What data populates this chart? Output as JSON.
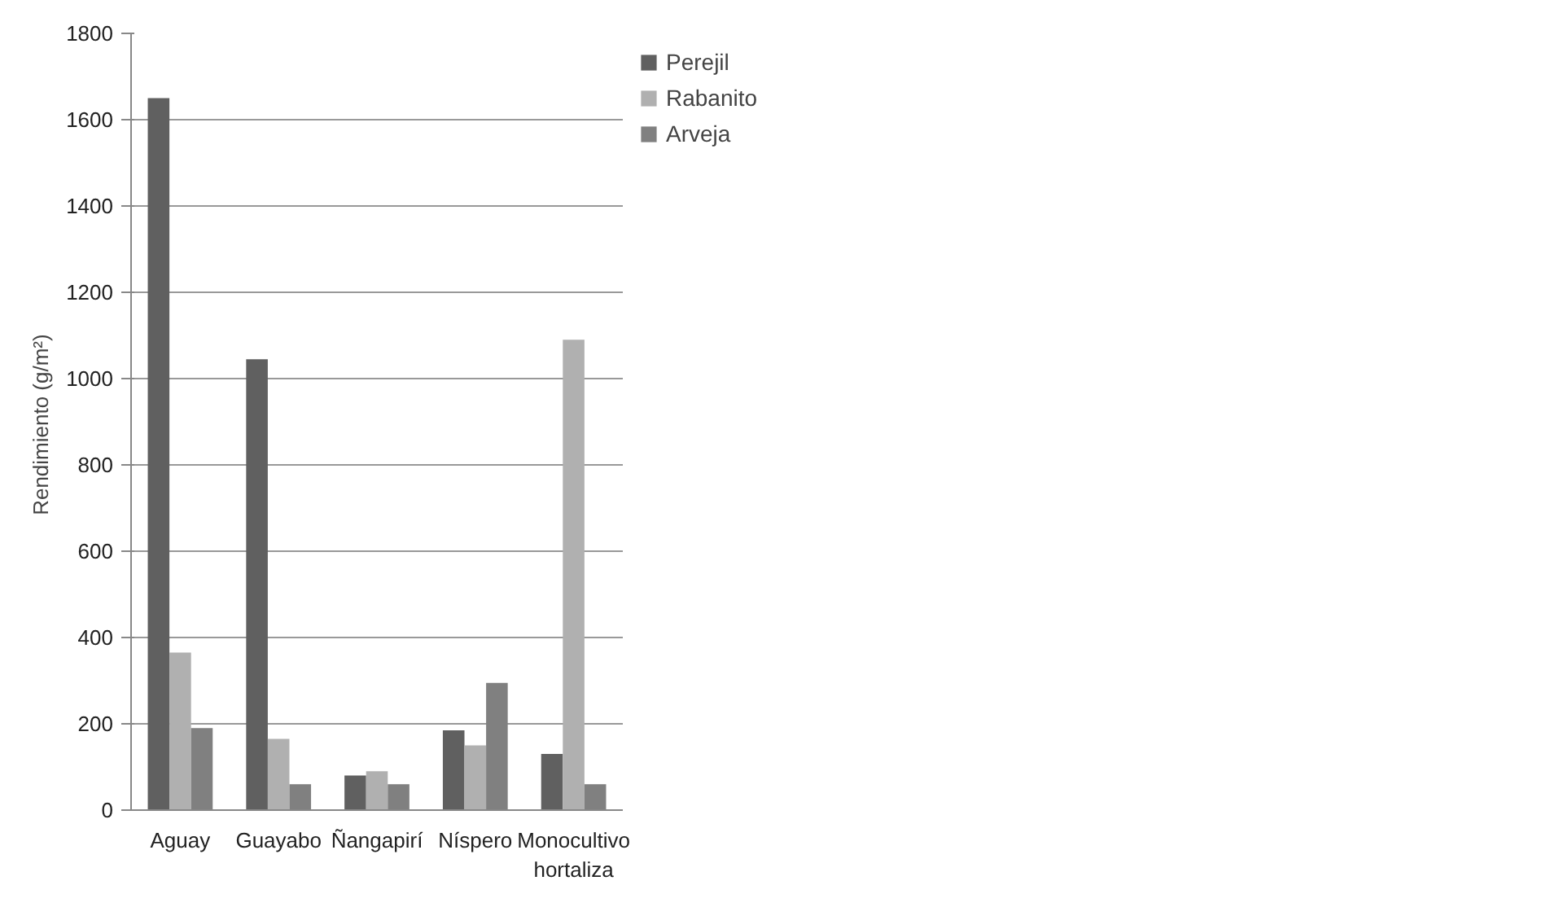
{
  "chart_data": {
    "type": "bar",
    "ylabel": "Rendimiento  (g/m²)",
    "categories": [
      "Aguay",
      "Guayabo",
      "Ñangapirí",
      "Níspero",
      "Monocultivo hortaliza"
    ],
    "series": [
      {
        "name": "Perejil",
        "color": "#606060",
        "values": [
          1650,
          1045,
          80,
          185,
          130
        ]
      },
      {
        "name": "Rabanito",
        "color": "#b0b0b0",
        "values": [
          365,
          165,
          90,
          150,
          1090
        ]
      },
      {
        "name": "Arveja",
        "color": "#808080",
        "values": [
          190,
          60,
          60,
          295,
          60
        ]
      }
    ],
    "ylim": [
      0,
      1800
    ],
    "yticks": [
      0,
      200,
      400,
      600,
      800,
      1000,
      1200,
      1400,
      1600,
      1800
    ],
    "grid": "y",
    "legend": "top right"
  }
}
